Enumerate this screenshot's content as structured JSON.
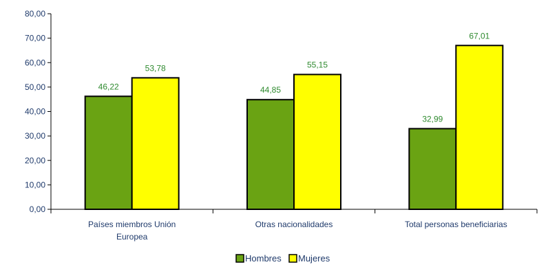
{
  "chart_data": {
    "type": "bar",
    "categories": [
      [
        "Países miembros Unión",
        "Europea"
      ],
      [
        "Otras nacionalidades"
      ],
      [
        "Total personas beneficiarias"
      ]
    ],
    "series": [
      {
        "name": "Hombres",
        "values": [
          46.22,
          44.85,
          32.99
        ],
        "labels": [
          "46,22",
          "44,85",
          "32,99"
        ],
        "color": "#6aa313"
      },
      {
        "name": "Mujeres",
        "values": [
          53.78,
          55.15,
          67.01
        ],
        "labels": [
          "53,78",
          "55,15",
          "67,01"
        ],
        "color": "#ffff00"
      }
    ],
    "ylim": [
      0,
      80
    ],
    "y_ticks": [
      "0,00",
      "10,00",
      "20,00",
      "30,00",
      "40,00",
      "50,00",
      "60,00",
      "70,00",
      "80,00"
    ],
    "title": "",
    "xlabel": "",
    "ylabel": "",
    "grid": false,
    "legend_position": "bottom-center",
    "bar_outline_color": "#000000",
    "axis_color": "#000000"
  }
}
